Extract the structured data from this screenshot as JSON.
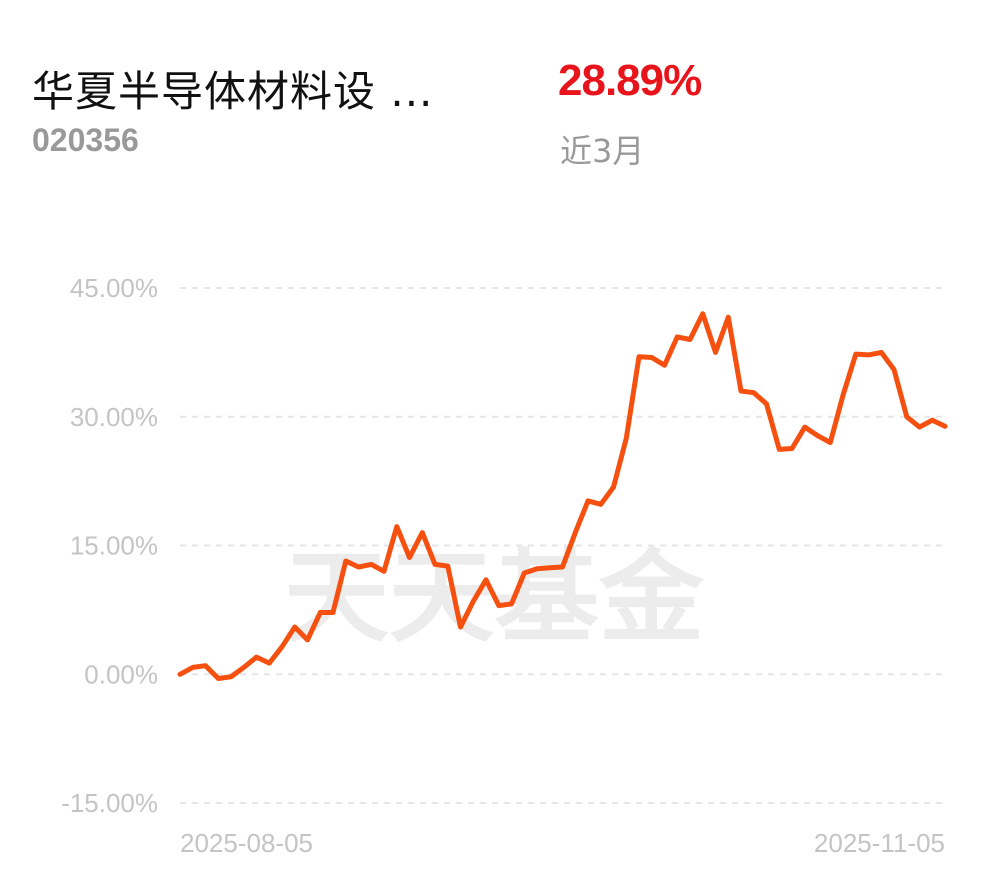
{
  "header": {
    "fund_name": "华夏半导体材料设 ...",
    "fund_code": "020356",
    "return_value": "28.89%",
    "period_label": "近3月"
  },
  "watermark": "天天基金",
  "colors": {
    "line": "#f5500f",
    "return": "#e8141c",
    "grid": "#e6e6e6",
    "tick": "#c4c4c4"
  },
  "chart_data": {
    "type": "line",
    "title": "",
    "xlabel": "",
    "ylabel": "",
    "ylim": [
      -15,
      45
    ],
    "y_ticks": [
      45,
      30,
      15,
      0,
      -15
    ],
    "y_tick_labels": [
      "45.00%",
      "30.00%",
      "15.00%",
      "0.00%",
      "-15.00%"
    ],
    "x_tick_labels": [
      "2025-08-05",
      "2025-11-05"
    ],
    "x_range": [
      "2025-08-05",
      "2025-11-05"
    ],
    "grid": true,
    "series": [
      {
        "values": [
          0.0,
          0.8,
          1.0,
          -0.5,
          -0.3,
          0.8,
          2.0,
          1.3,
          3.2,
          5.5,
          4.0,
          7.2,
          7.2,
          13.2,
          12.5,
          12.8,
          12.0,
          17.2,
          13.6,
          16.5,
          12.8,
          12.6,
          5.5,
          8.5,
          11.0,
          8.0,
          8.2,
          11.8,
          12.3,
          12.4,
          12.5,
          16.5,
          20.2,
          19.8,
          21.8,
          27.5,
          37.0,
          36.9,
          36.0,
          39.3,
          39.0,
          42.0,
          37.5,
          41.6,
          33.0,
          32.8,
          31.5,
          26.2,
          26.3,
          28.8,
          27.8,
          27.0,
          32.5,
          37.3,
          37.2,
          37.5,
          35.5,
          30.0,
          28.8,
          29.6,
          28.89
        ]
      }
    ]
  }
}
